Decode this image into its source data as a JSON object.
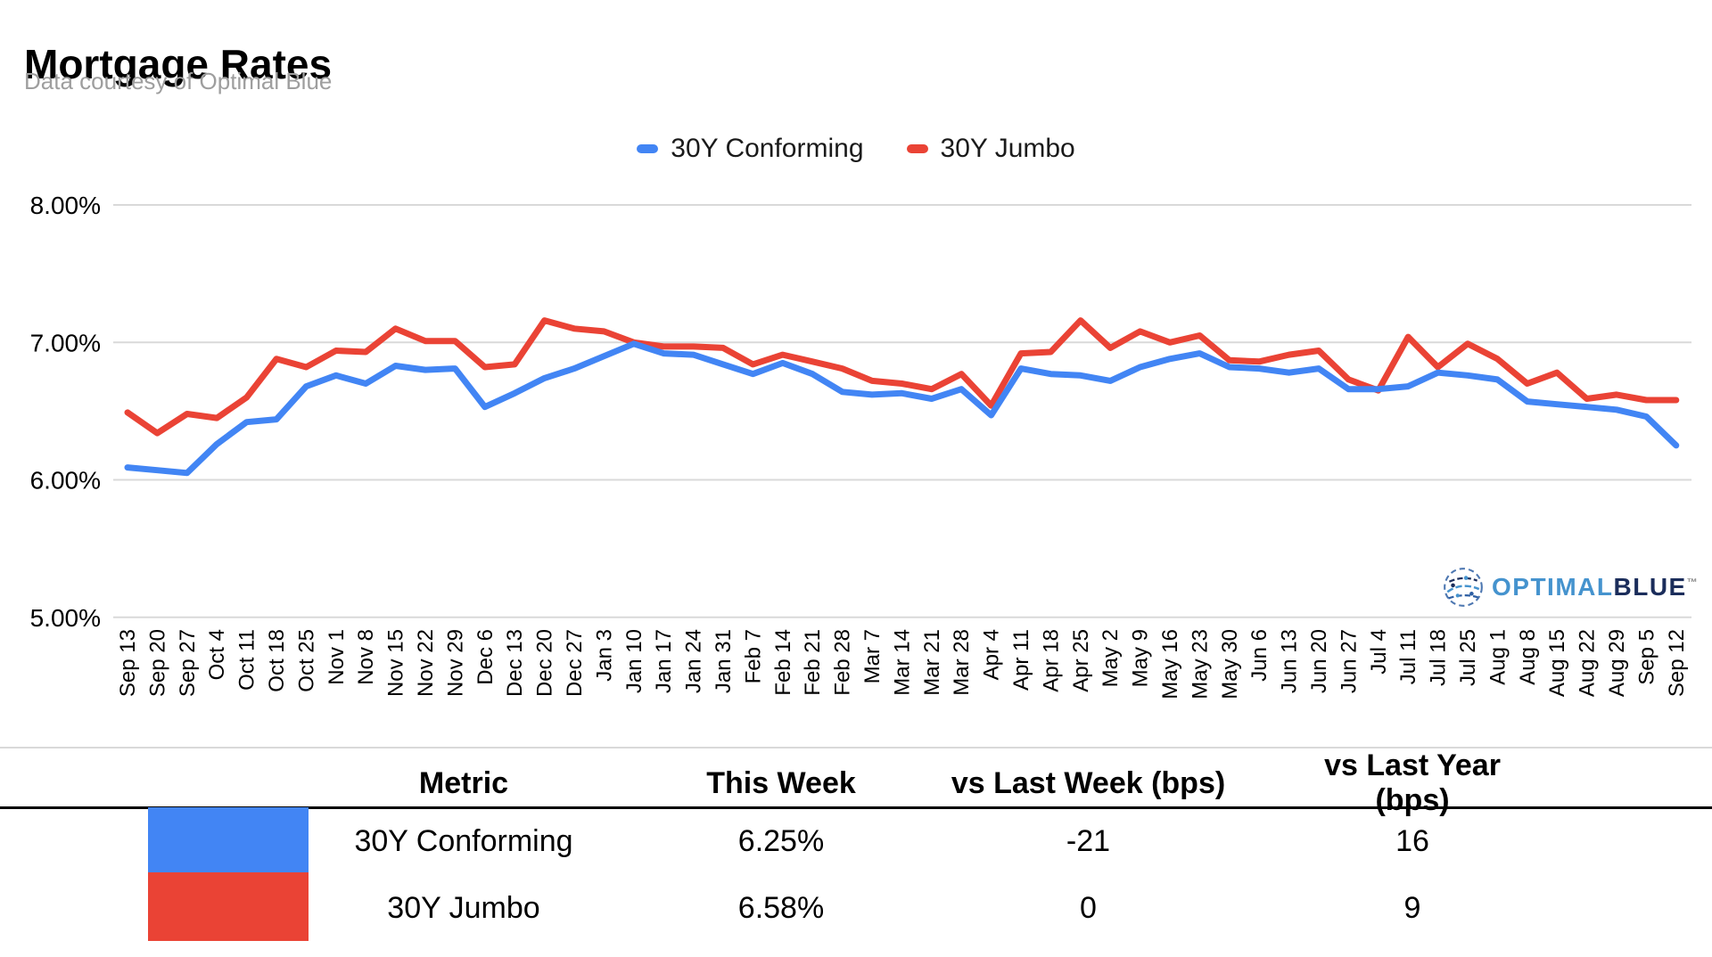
{
  "header": {
    "title": "Mortgage Rates",
    "subtitle": "Data courtesy of Optimal Blue"
  },
  "legend": {
    "items": [
      {
        "label": "30Y Conforming",
        "color": "#4285f4"
      },
      {
        "label": "30Y Jumbo",
        "color": "#ea4335"
      }
    ]
  },
  "chart_data": {
    "type": "line",
    "title": "Mortgage Rates",
    "xlabel": "",
    "ylabel": "",
    "ylim": [
      5,
      8
    ],
    "grid": "horizontal",
    "legend_position": "top",
    "yticks": [
      {
        "value": 8,
        "label": "8.00%"
      },
      {
        "value": 7,
        "label": "7.00%"
      },
      {
        "value": 6,
        "label": "6.00%"
      },
      {
        "value": 5,
        "label": "5.00%"
      }
    ],
    "categories": [
      "Sep 13",
      "Sep 20",
      "Sep 27",
      "Oct 4",
      "Oct 11",
      "Oct 18",
      "Oct 25",
      "Nov 1",
      "Nov 8",
      "Nov 15",
      "Nov 22",
      "Nov 29",
      "Dec 6",
      "Dec 13",
      "Dec 20",
      "Dec 27",
      "Jan 3",
      "Jan 10",
      "Jan 17",
      "Jan 24",
      "Jan 31",
      "Feb 7",
      "Feb 14",
      "Feb 21",
      "Feb 28",
      "Mar 7",
      "Mar 14",
      "Mar 21",
      "Mar 28",
      "Apr 4",
      "Apr 11",
      "Apr 18",
      "Apr 25",
      "May 2",
      "May 9",
      "May 16",
      "May 23",
      "May 30",
      "Jun 6",
      "Jun 13",
      "Jun 20",
      "Jun 27",
      "Jul 4",
      "Jul 11",
      "Jul 18",
      "Jul 25",
      "Aug 1",
      "Aug 8",
      "Aug 15",
      "Aug 22",
      "Aug 29",
      "Sep 5",
      "Sep 12"
    ],
    "series": [
      {
        "name": "30Y Conforming",
        "color": "#4285f4",
        "values": [
          6.09,
          6.07,
          6.05,
          6.26,
          6.42,
          6.44,
          6.68,
          6.76,
          6.7,
          6.83,
          6.8,
          6.81,
          6.53,
          6.63,
          6.74,
          6.81,
          6.9,
          6.99,
          6.92,
          6.91,
          6.84,
          6.77,
          6.85,
          6.77,
          6.64,
          6.62,
          6.63,
          6.59,
          6.66,
          6.47,
          6.81,
          6.77,
          6.76,
          6.72,
          6.82,
          6.88,
          6.92,
          6.82,
          6.81,
          6.78,
          6.81,
          6.66,
          6.66,
          6.68,
          6.78,
          6.76,
          6.73,
          6.57,
          6.55,
          6.53,
          6.51,
          6.46,
          6.25
        ]
      },
      {
        "name": "30Y Jumbo",
        "color": "#ea4335",
        "values": [
          6.49,
          6.34,
          6.48,
          6.45,
          6.6,
          6.88,
          6.82,
          6.94,
          6.93,
          7.1,
          7.01,
          7.01,
          6.82,
          6.84,
          7.16,
          7.1,
          7.08,
          7.0,
          6.97,
          6.97,
          6.96,
          6.84,
          6.91,
          6.86,
          6.81,
          6.72,
          6.7,
          6.66,
          6.77,
          6.54,
          6.92,
          6.93,
          7.16,
          6.96,
          7.08,
          7.0,
          7.05,
          6.87,
          6.86,
          6.91,
          6.94,
          6.73,
          6.65,
          7.04,
          6.82,
          6.99,
          6.88,
          6.7,
          6.78,
          6.59,
          6.62,
          6.58,
          6.58
        ]
      }
    ]
  },
  "logo": {
    "optimal": "OPTIMAL",
    "blue": "BLUE",
    "tm": "™"
  },
  "table": {
    "headers": [
      "Metric",
      "This Week",
      "vs Last Week (bps)",
      "vs Last Year (bps)"
    ],
    "rows": [
      {
        "metric": "30Y Conforming",
        "this_week": "6.25%",
        "vs_last_week": "-21",
        "vs_last_year": "16",
        "color": "#4285f4"
      },
      {
        "metric": "30Y Jumbo",
        "this_week": "6.58%",
        "vs_last_week": "0",
        "vs_last_year": "9",
        "color": "#ea4335"
      }
    ]
  }
}
